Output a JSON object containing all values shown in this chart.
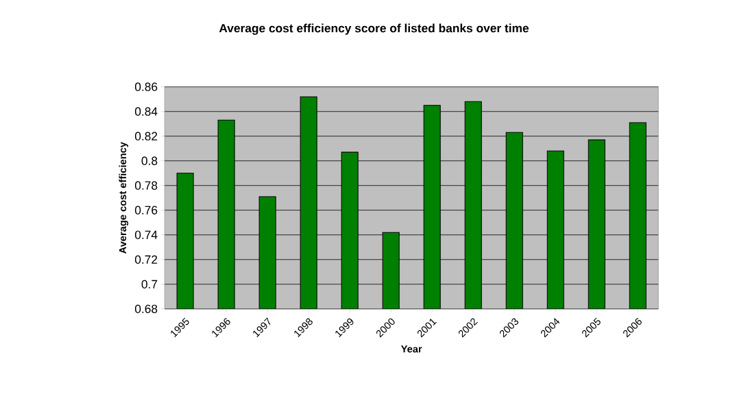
{
  "chart_data": {
    "type": "bar",
    "title": "Average cost efficiency score of listed banks over time",
    "xlabel": "Year",
    "ylabel": "Average cost efficiency",
    "categories": [
      "1995",
      "1996",
      "1997",
      "1998",
      "1999",
      "2000",
      "2001",
      "2002",
      "2003",
      "2004",
      "2005",
      "2006"
    ],
    "values": [
      0.79,
      0.833,
      0.771,
      0.852,
      0.807,
      0.742,
      0.845,
      0.848,
      0.823,
      0.808,
      0.817,
      0.831
    ],
    "color": "#008000",
    "ylim": [
      0.68,
      0.86
    ],
    "yticks": [
      0.68,
      0.7,
      0.72,
      0.74,
      0.76,
      0.78,
      0.8,
      0.82,
      0.84,
      0.86
    ],
    "grid": "y"
  }
}
